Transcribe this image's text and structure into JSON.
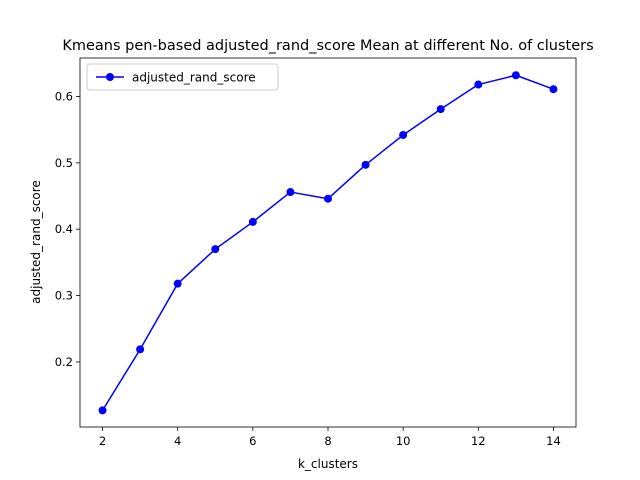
{
  "chart_data": {
    "type": "line",
    "title": "Kmeans pen-based adjusted_rand_score Mean at different No. of clusters",
    "xlabel": "k_clusters",
    "ylabel": "adjusted_rand_score",
    "xlim": [
      1.4,
      14.6
    ],
    "ylim": [
      0.102,
      0.658
    ],
    "xticks": [
      2,
      4,
      6,
      8,
      10,
      12,
      14
    ],
    "xtick_labels": [
      "2",
      "4",
      "6",
      "8",
      "10",
      "12",
      "14"
    ],
    "yticks": [
      0.2,
      0.3,
      0.4,
      0.5,
      0.6
    ],
    "ytick_labels": [
      "0.2",
      "0.3",
      "0.4",
      "0.5",
      "0.6"
    ],
    "grid": false,
    "legend_position": "top-left",
    "series": [
      {
        "name": "adjusted_rand_score",
        "color": "#0000ff",
        "marker": "circle",
        "x": [
          2,
          3,
          4,
          5,
          6,
          7,
          8,
          9,
          10,
          11,
          12,
          13,
          14
        ],
        "y": [
          0.127,
          0.219,
          0.318,
          0.37,
          0.411,
          0.456,
          0.446,
          0.497,
          0.542,
          0.581,
          0.618,
          0.632,
          0.611
        ]
      }
    ]
  }
}
